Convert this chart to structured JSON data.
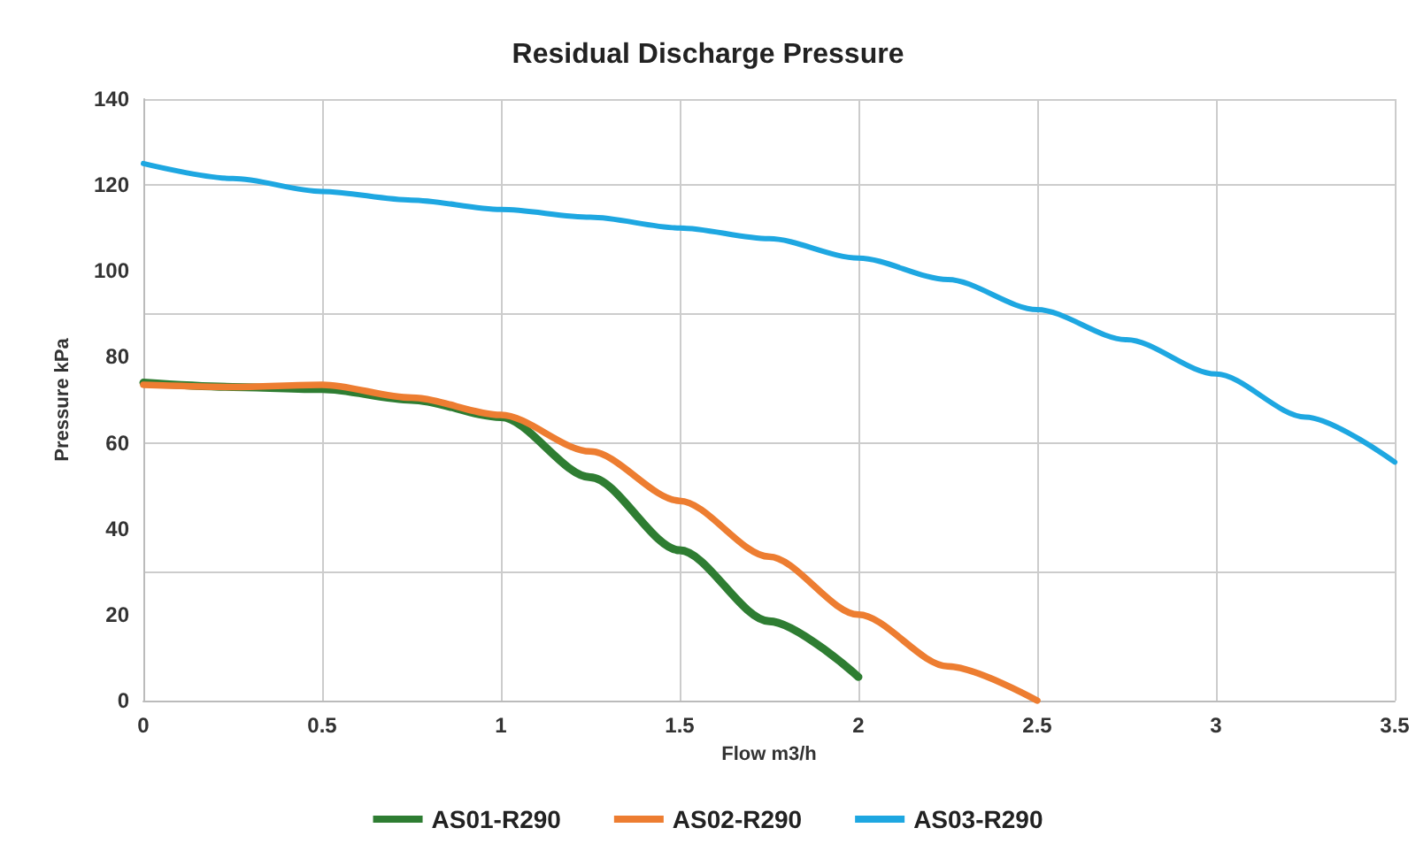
{
  "chart_data": {
    "type": "line",
    "title": "Residual Discharge Pressure",
    "xlabel": "Flow m3/h",
    "ylabel": "Pressure kPa",
    "xlim": [
      0,
      3.5
    ],
    "xticks": [
      0,
      0.5,
      1,
      1.5,
      2,
      2.5,
      3,
      3.5
    ],
    "ylim": [
      0,
      140
    ],
    "yticks": [
      0,
      20,
      40,
      60,
      80,
      100,
      120,
      140
    ],
    "grid": true,
    "legend": "bottom",
    "marker": "none",
    "line_style": "solid",
    "series": [
      {
        "name": "AS01-R290",
        "color": "#2e7d32",
        "x": [
          0,
          0.25,
          0.5,
          0.75,
          1,
          1.25,
          1.5,
          1.75,
          2
        ],
        "values": [
          74,
          73,
          72.5,
          70,
          66,
          52,
          35,
          18.5,
          5.5
        ]
      },
      {
        "name": "AS02-R290",
        "color": "#ed7d31",
        "x": [
          0,
          0.25,
          0.5,
          0.75,
          1,
          1.25,
          1.5,
          1.75,
          2,
          2.25,
          2.5
        ],
        "values": [
          73.5,
          73,
          73.5,
          70.5,
          66.5,
          58,
          46.5,
          33.5,
          20,
          8,
          0
        ]
      },
      {
        "name": "AS03-R290",
        "color": "#1ea7e1",
        "x": [
          0,
          0.25,
          0.5,
          0.75,
          1,
          1.25,
          1.5,
          1.75,
          2,
          2.25,
          2.5,
          2.75,
          3,
          3.25,
          3.5
        ],
        "values": [
          125,
          121.5,
          118.5,
          116.5,
          114.3,
          112.5,
          110,
          107.5,
          103,
          98,
          91,
          84,
          76,
          66,
          55.5
        ]
      }
    ]
  }
}
